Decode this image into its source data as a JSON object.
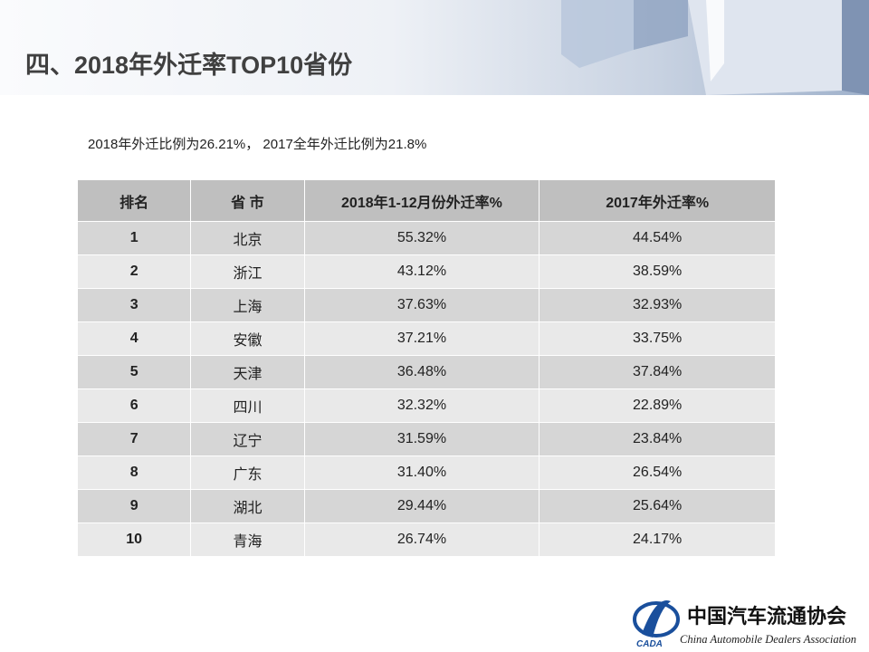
{
  "header": {
    "title": "四、2018年外迁率TOP10省份"
  },
  "subtitle": "2018年外迁比例为26.21%， 2017全年外迁比例为21.8%",
  "table": {
    "columns": [
      "排名",
      "省 市",
      "2018年1-12月份外迁率%",
      "2017年外迁率%"
    ],
    "rows": [
      [
        "1",
        "北京",
        "55.32%",
        "44.54%"
      ],
      [
        "2",
        "浙江",
        "43.12%",
        "38.59%"
      ],
      [
        "3",
        "上海",
        "37.63%",
        "32.93%"
      ],
      [
        "4",
        "安徽",
        "37.21%",
        "33.75%"
      ],
      [
        "5",
        "天津",
        "36.48%",
        "37.84%"
      ],
      [
        "6",
        "四川",
        "32.32%",
        "22.89%"
      ],
      [
        "7",
        "辽宁",
        "31.59%",
        "23.84%"
      ],
      [
        "8",
        "广东",
        "31.40%",
        "26.54%"
      ],
      [
        "9",
        "湖北",
        "29.44%",
        "25.64%"
      ],
      [
        "10",
        "青海",
        "26.74%",
        "24.17%"
      ]
    ]
  },
  "logo": {
    "mark": "CADA",
    "name_cn": "中国汽车流通协会",
    "name_en": "China Automobile Dealers Association"
  }
}
